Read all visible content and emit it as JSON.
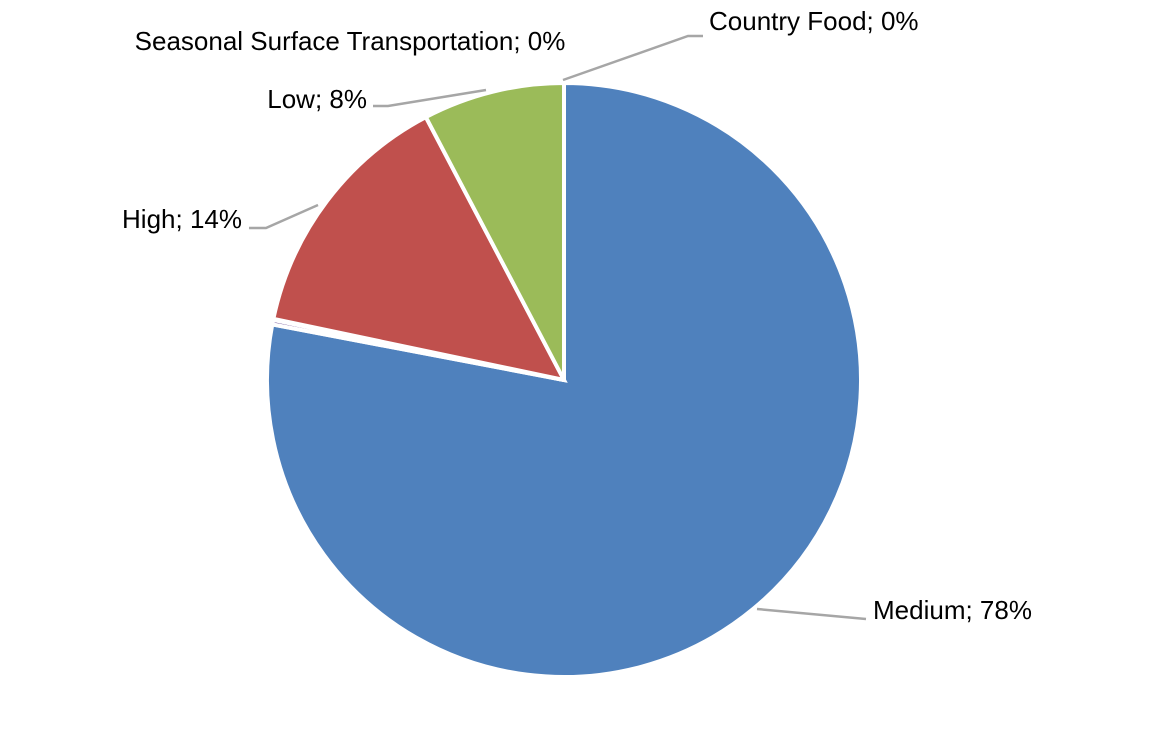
{
  "chart_data": {
    "type": "pie",
    "title": "",
    "label_separator": "; ",
    "start_angle_deg": 0,
    "direction": "clockwise",
    "series": [
      {
        "values": [
          78,
          0,
          0,
          14,
          8
        ],
        "categories": [
          "Medium",
          "Country Food",
          "Seasonal Surface Transportation",
          "High",
          "Low"
        ]
      }
    ],
    "slices": [
      {
        "category": "Medium",
        "value": 78,
        "percent_label": "78%",
        "color": "#4F81BD",
        "label": "Medium; 78%"
      },
      {
        "category": "Country Food",
        "value": 0.25,
        "percent_label": "0%",
        "color": "#8064A2",
        "label": "Country Food; 0%"
      },
      {
        "category": "Seasonal Surface Transportation",
        "value": 0.05,
        "percent_label": "0%",
        "color": "#4BACC6",
        "label": "Seasonal Surface Transportation; 0%"
      },
      {
        "category": "High",
        "value": 14,
        "percent_label": "14%",
        "color": "#C0504D",
        "label": "High; 14%"
      },
      {
        "category": "Low",
        "value": 7.7,
        "percent_label": "8%",
        "color": "#9BBB59",
        "label": "Low; 8%"
      }
    ],
    "legend": "none",
    "data_labels": "outside-with-leader-lines",
    "leader_line_color": "#A6A6A6"
  }
}
